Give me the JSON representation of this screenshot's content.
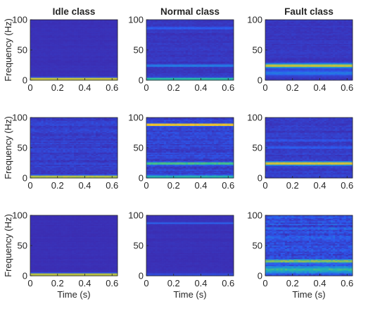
{
  "chart_data": [
    {
      "type": "heatmap",
      "title": "Idle class",
      "xlabel": "",
      "ylabel": "Frequency (Hz)",
      "xlim": [
        0,
        0.64
      ],
      "ylim": [
        0,
        100
      ],
      "xticks": [
        "0",
        "0.2",
        "0.4",
        "0.6"
      ],
      "yticks": [
        "0",
        "50",
        "100"
      ],
      "features": [
        {
          "kind": "band",
          "freq": 2,
          "intensity": 0.92,
          "width": 2
        }
      ],
      "noise": 0.05
    },
    {
      "type": "heatmap",
      "title": "Normal class",
      "xlabel": "",
      "ylabel": "",
      "xlim": [
        0,
        0.64
      ],
      "ylim": [
        0,
        100
      ],
      "xticks": [
        "0",
        "0.2",
        "0.4",
        "0.6"
      ],
      "yticks": [
        "0",
        "50",
        "100"
      ],
      "features": [
        {
          "kind": "band",
          "freq": 2,
          "intensity": 0.55,
          "width": 2
        },
        {
          "kind": "band",
          "freq": 24,
          "intensity": 0.28,
          "width": 1.5
        },
        {
          "kind": "band",
          "freq": 86,
          "intensity": 0.18,
          "width": 1.5
        }
      ],
      "noise": 0.12
    },
    {
      "type": "heatmap",
      "title": "Fault class",
      "xlabel": "",
      "ylabel": "",
      "xlim": [
        0,
        0.64
      ],
      "ylim": [
        0,
        100
      ],
      "xticks": [
        "0",
        "0.2",
        "0.4",
        "0.6"
      ],
      "yticks": [
        "0",
        "50",
        "100"
      ],
      "features": [
        {
          "kind": "band",
          "freq": 24,
          "intensity": 0.78,
          "width": 3
        },
        {
          "kind": "band",
          "freq": 12,
          "intensity": 0.2,
          "width": 4
        }
      ],
      "noise": 0.12
    },
    {
      "type": "heatmap",
      "title": "",
      "xlabel": "",
      "ylabel": "Frequency (Hz)",
      "xlim": [
        0,
        0.64
      ],
      "ylim": [
        0,
        100
      ],
      "xticks": [
        "0",
        "0.2",
        "0.4",
        "0.6"
      ],
      "yticks": [
        "0",
        "50",
        "100"
      ],
      "features": [
        {
          "kind": "band",
          "freq": 2,
          "intensity": 0.8,
          "width": 2
        }
      ],
      "noise": 0.2
    },
    {
      "type": "heatmap",
      "title": "",
      "xlabel": "",
      "ylabel": "",
      "xlim": [
        0,
        0.64
      ],
      "ylim": [
        0,
        100
      ],
      "xticks": [
        "0",
        "0.2",
        "0.4",
        "0.6"
      ],
      "yticks": [
        "0",
        "50",
        "100"
      ],
      "features": [
        {
          "kind": "band",
          "freq": 88,
          "intensity": 0.95,
          "width": 1.8
        },
        {
          "kind": "band",
          "freq": 24,
          "intensity": 0.55,
          "width": 2
        },
        {
          "kind": "band",
          "freq": 2,
          "intensity": 0.45,
          "width": 2
        }
      ],
      "noise": 0.25
    },
    {
      "type": "heatmap",
      "title": "",
      "xlabel": "",
      "ylabel": "",
      "xlim": [
        0,
        0.64
      ],
      "ylim": [
        0,
        100
      ],
      "xticks": [
        "0",
        "0.2",
        "0.4",
        "0.6"
      ],
      "yticks": [
        "0",
        "50",
        "100"
      ],
      "features": [
        {
          "kind": "band",
          "freq": 24,
          "intensity": 0.8,
          "width": 2.5
        },
        {
          "kind": "band",
          "freq": 50,
          "intensity": 0.12,
          "width": 1.5
        },
        {
          "kind": "band",
          "freq": 62,
          "intensity": 0.12,
          "width": 1.5
        }
      ],
      "noise": 0.18
    },
    {
      "type": "heatmap",
      "title": "",
      "xlabel": "Time (s)",
      "ylabel": "Frequency (Hz)",
      "xlim": [
        0,
        0.64
      ],
      "ylim": [
        0,
        100
      ],
      "xticks": [
        "0",
        "0.2",
        "0.4",
        "0.6"
      ],
      "yticks": [
        "0",
        "50",
        "100"
      ],
      "features": [
        {
          "kind": "band",
          "freq": 2,
          "intensity": 0.9,
          "width": 2
        }
      ],
      "noise": 0.04
    },
    {
      "type": "heatmap",
      "title": "",
      "xlabel": "Time (s)",
      "ylabel": "",
      "xlim": [
        0,
        0.64
      ],
      "ylim": [
        0,
        100
      ],
      "xticks": [
        "0",
        "0.2",
        "0.4",
        "0.6"
      ],
      "yticks": [
        "0",
        "50",
        "100"
      ],
      "features": [
        {
          "kind": "band",
          "freq": 87,
          "intensity": 0.15,
          "width": 1.5
        },
        {
          "kind": "band",
          "freq": 2,
          "intensity": 0.1,
          "width": 2
        }
      ],
      "noise": 0.05
    },
    {
      "type": "heatmap",
      "title": "",
      "xlabel": "Time (s)",
      "ylabel": "",
      "xlim": [
        0,
        0.64
      ],
      "ylim": [
        0,
        100
      ],
      "xticks": [
        "0",
        "0.2",
        "0.4",
        "0.6"
      ],
      "yticks": [
        "0",
        "50",
        "100"
      ],
      "features": [
        {
          "kind": "band",
          "freq": 24,
          "intensity": 0.55,
          "width": 2.5
        },
        {
          "kind": "band",
          "freq": 10,
          "intensity": 0.35,
          "width": 5
        }
      ],
      "noise": 0.38
    }
  ],
  "colormap": [
    "#3e26a8",
    "#2c5aee",
    "#1e96d4",
    "#2ab8a2",
    "#8fbe55",
    "#f2c02f",
    "#f9fb0e"
  ]
}
